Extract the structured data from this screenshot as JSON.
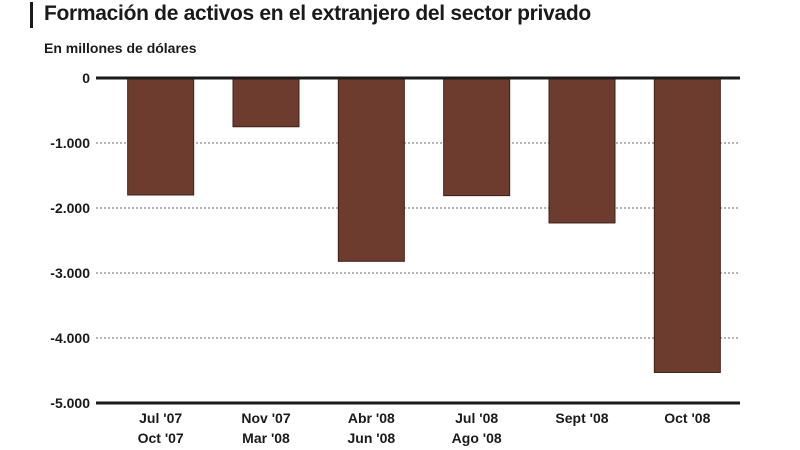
{
  "chart_data": {
    "type": "bar",
    "title": "Formación de activos en el extranjero del sector privado",
    "subtitle": "En millones de dólares",
    "categories": [
      [
        "Jul '07",
        "Oct '07"
      ],
      [
        "Nov '07",
        "Mar '08"
      ],
      [
        "Abr '08",
        "Jun '08"
      ],
      [
        "Jul '08",
        "Ago '08"
      ],
      [
        "Sept '08"
      ],
      [
        "Oct '08"
      ]
    ],
    "values": [
      -1800,
      -750,
      -2820,
      -1810,
      -2230,
      -4530
    ],
    "ylim": [
      -5000,
      0
    ],
    "yticks": [
      0,
      -1000,
      -2000,
      -3000,
      -4000,
      -5000
    ],
    "ytick_labels": [
      "0",
      "-1.000",
      "-2.000",
      "-3.000",
      "-4.000",
      "-5.000"
    ],
    "xlabel": "",
    "ylabel": "",
    "grid": true,
    "colors": {
      "bar": "#6e3c2e",
      "bar_edge": "#3e1f16",
      "axis": "#1a1a1a",
      "grid": "#9a9a9a"
    }
  }
}
